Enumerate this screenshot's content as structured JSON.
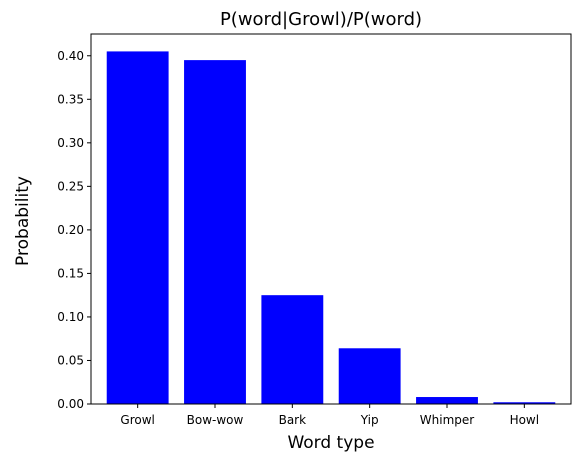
{
  "chart_data": {
    "type": "bar",
    "title": "P(word|Growl)/P(word)",
    "xlabel": "Word type",
    "ylabel": "Probability",
    "categories": [
      "Growl",
      "Bow-wow",
      "Bark",
      "Yip",
      "Whimper",
      "Howl"
    ],
    "values": [
      0.405,
      0.395,
      0.125,
      0.064,
      0.008,
      0.002
    ],
    "ylim": [
      0,
      0.425
    ],
    "yticks": [
      "0.00",
      "0.05",
      "0.10",
      "0.15",
      "0.20",
      "0.25",
      "0.30",
      "0.35",
      "0.40"
    ],
    "bar_color": "#0000ff",
    "grid": false
  }
}
